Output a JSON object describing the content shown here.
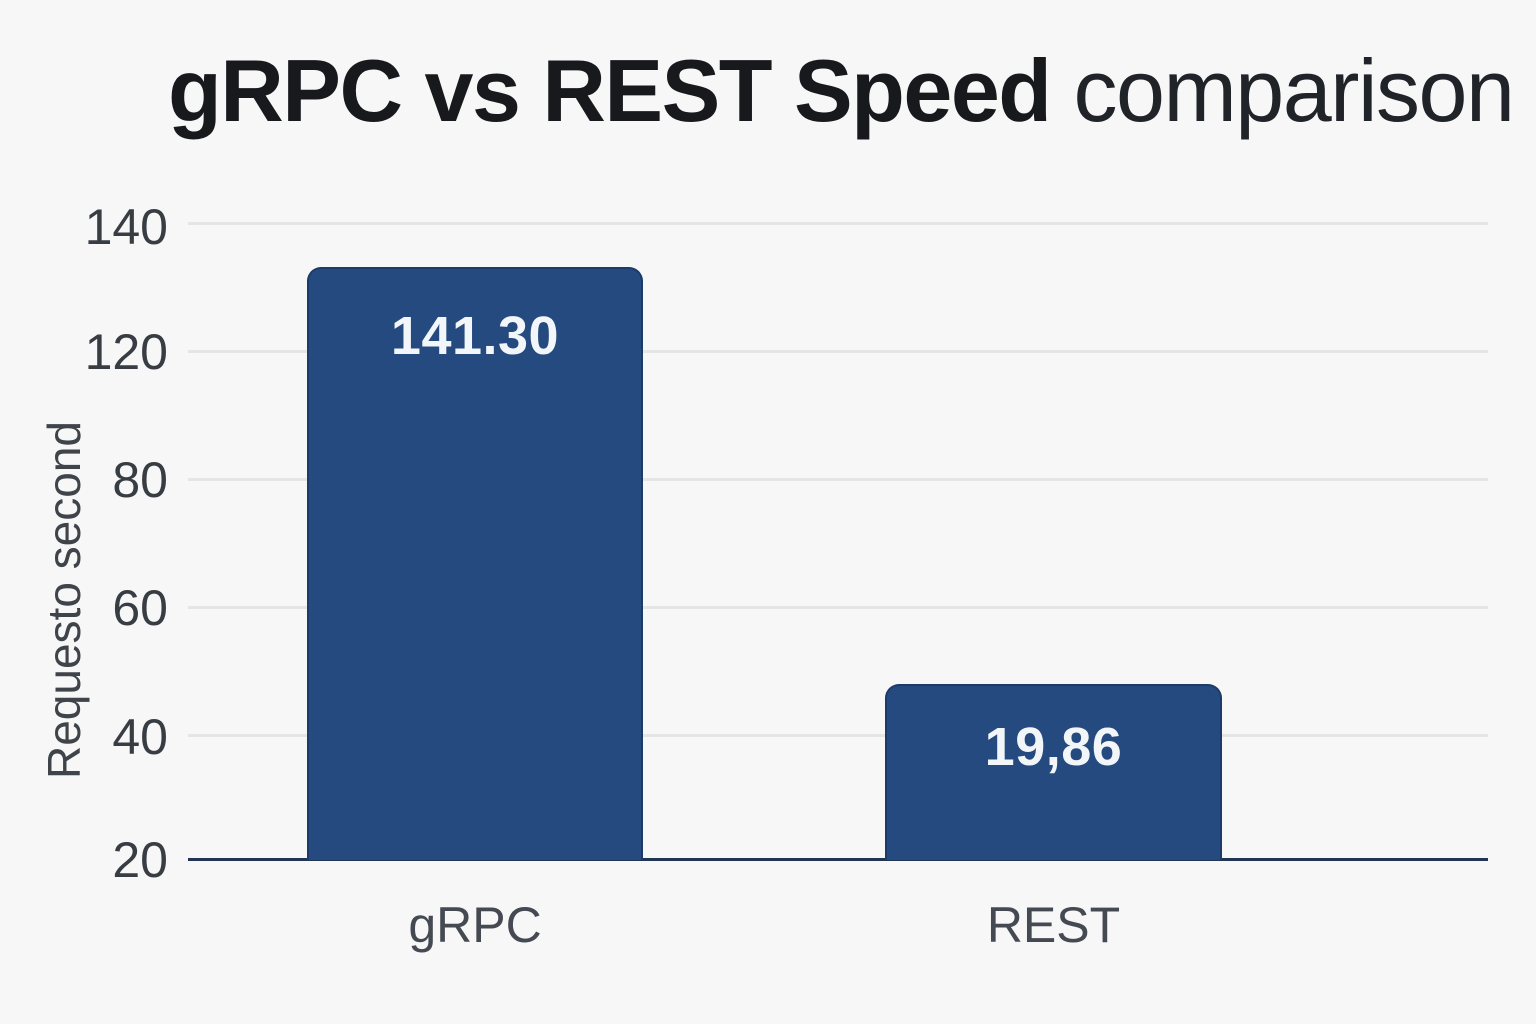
{
  "title": {
    "bold": "gRPC vs REST Speed",
    "regular": " comparison"
  },
  "y_axis": {
    "label": "Requesto second",
    "ticks": [
      "140",
      "120",
      "80",
      "60",
      "40",
      "20"
    ]
  },
  "bars": [
    {
      "label": "gRPC",
      "value": "141.30"
    },
    {
      "label": "REST",
      "value": "19,86"
    }
  ],
  "colors": {
    "background": "#f7f7f8",
    "gridline": "#e4e5e7",
    "axis_line": "#1f3553",
    "bar_fill": "#254a80",
    "bar_border": "#1c3b68",
    "bar_value_text": "#f3f6f9",
    "title_text": "#17191d",
    "tick_text": "#383d44"
  },
  "chart_data": {
    "type": "bar",
    "title": "gRPC vs REST Speed comparison",
    "categories": [
      "gRPC",
      "REST"
    ],
    "values": [
      141.3,
      19.86
    ],
    "value_labels": [
      "141.30",
      "19,86"
    ],
    "xlabel": "",
    "ylabel": "Requesto second",
    "y_tick_labels": [
      140,
      120,
      80,
      60,
      40,
      20
    ],
    "ylim": [
      20,
      140
    ],
    "grid": true,
    "legend": false,
    "bar_color": "#254a80",
    "note": "y-axis tick labels are evenly spaced but skip 100; bars rise from the baseline labeled 20"
  }
}
